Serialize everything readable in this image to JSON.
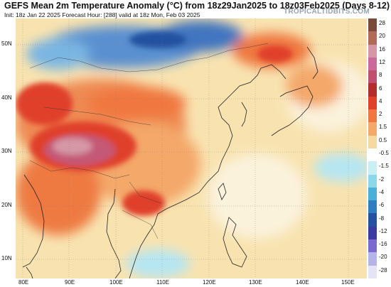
{
  "title": "GEFS Mean 2m Temperature Anomaly (°C) from 18z29Jan2025 to 18z03Feb2025 (Days 8-12)",
  "subtitle": "Init: 18z Jan 22 2025   Forecast Hour: [288]   valid at 18z Mon, Feb 03 2025",
  "brand": "TROPICALTIDBITS.COM",
  "lat_labels": [
    "50N",
    "40N",
    "30N",
    "20N",
    "10N"
  ],
  "lon_labels": [
    "80E",
    "90E",
    "100E",
    "110E",
    "120E",
    "130E",
    "140E",
    "150E"
  ],
  "colorbar": {
    "labels": [
      "28",
      "20",
      "16",
      "12",
      "8",
      "6",
      "4",
      "2",
      "1.5",
      "0.5",
      "-0.5",
      "-1.5",
      "-2",
      "-4",
      "-6",
      "-8",
      "-12",
      "-16",
      "-20",
      "-28"
    ],
    "colors": [
      "#7a4b38",
      "#b06a55",
      "#d597a6",
      "#c96a9a",
      "#c0506f",
      "#b32d2d",
      "#e0412b",
      "#f07840",
      "#f4a86a",
      "#f7d8a0",
      "#ffffff",
      "#c8f0f4",
      "#8ad8ea",
      "#4ab0d8",
      "#2f7fc0",
      "#2451a0",
      "#3a3aa0",
      "#7a6ad0",
      "#b4b4e8",
      "#e4e4f6"
    ]
  }
}
